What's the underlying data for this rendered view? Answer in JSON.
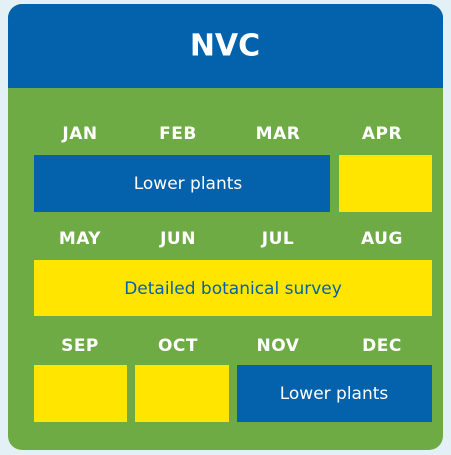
{
  "title": "NVC",
  "rows": [
    {
      "months": [
        "JAN",
        "FEB",
        "MAR",
        "APR"
      ],
      "bar_label": "Lower plants"
    },
    {
      "months": [
        "MAY",
        "JUN",
        "JUL",
        "AUG"
      ],
      "bar_label": "Detailed botanical survey"
    },
    {
      "months": [
        "SEP",
        "OCT",
        "NOV",
        "DEC"
      ],
      "bar_label": "Lower plants"
    }
  ]
}
